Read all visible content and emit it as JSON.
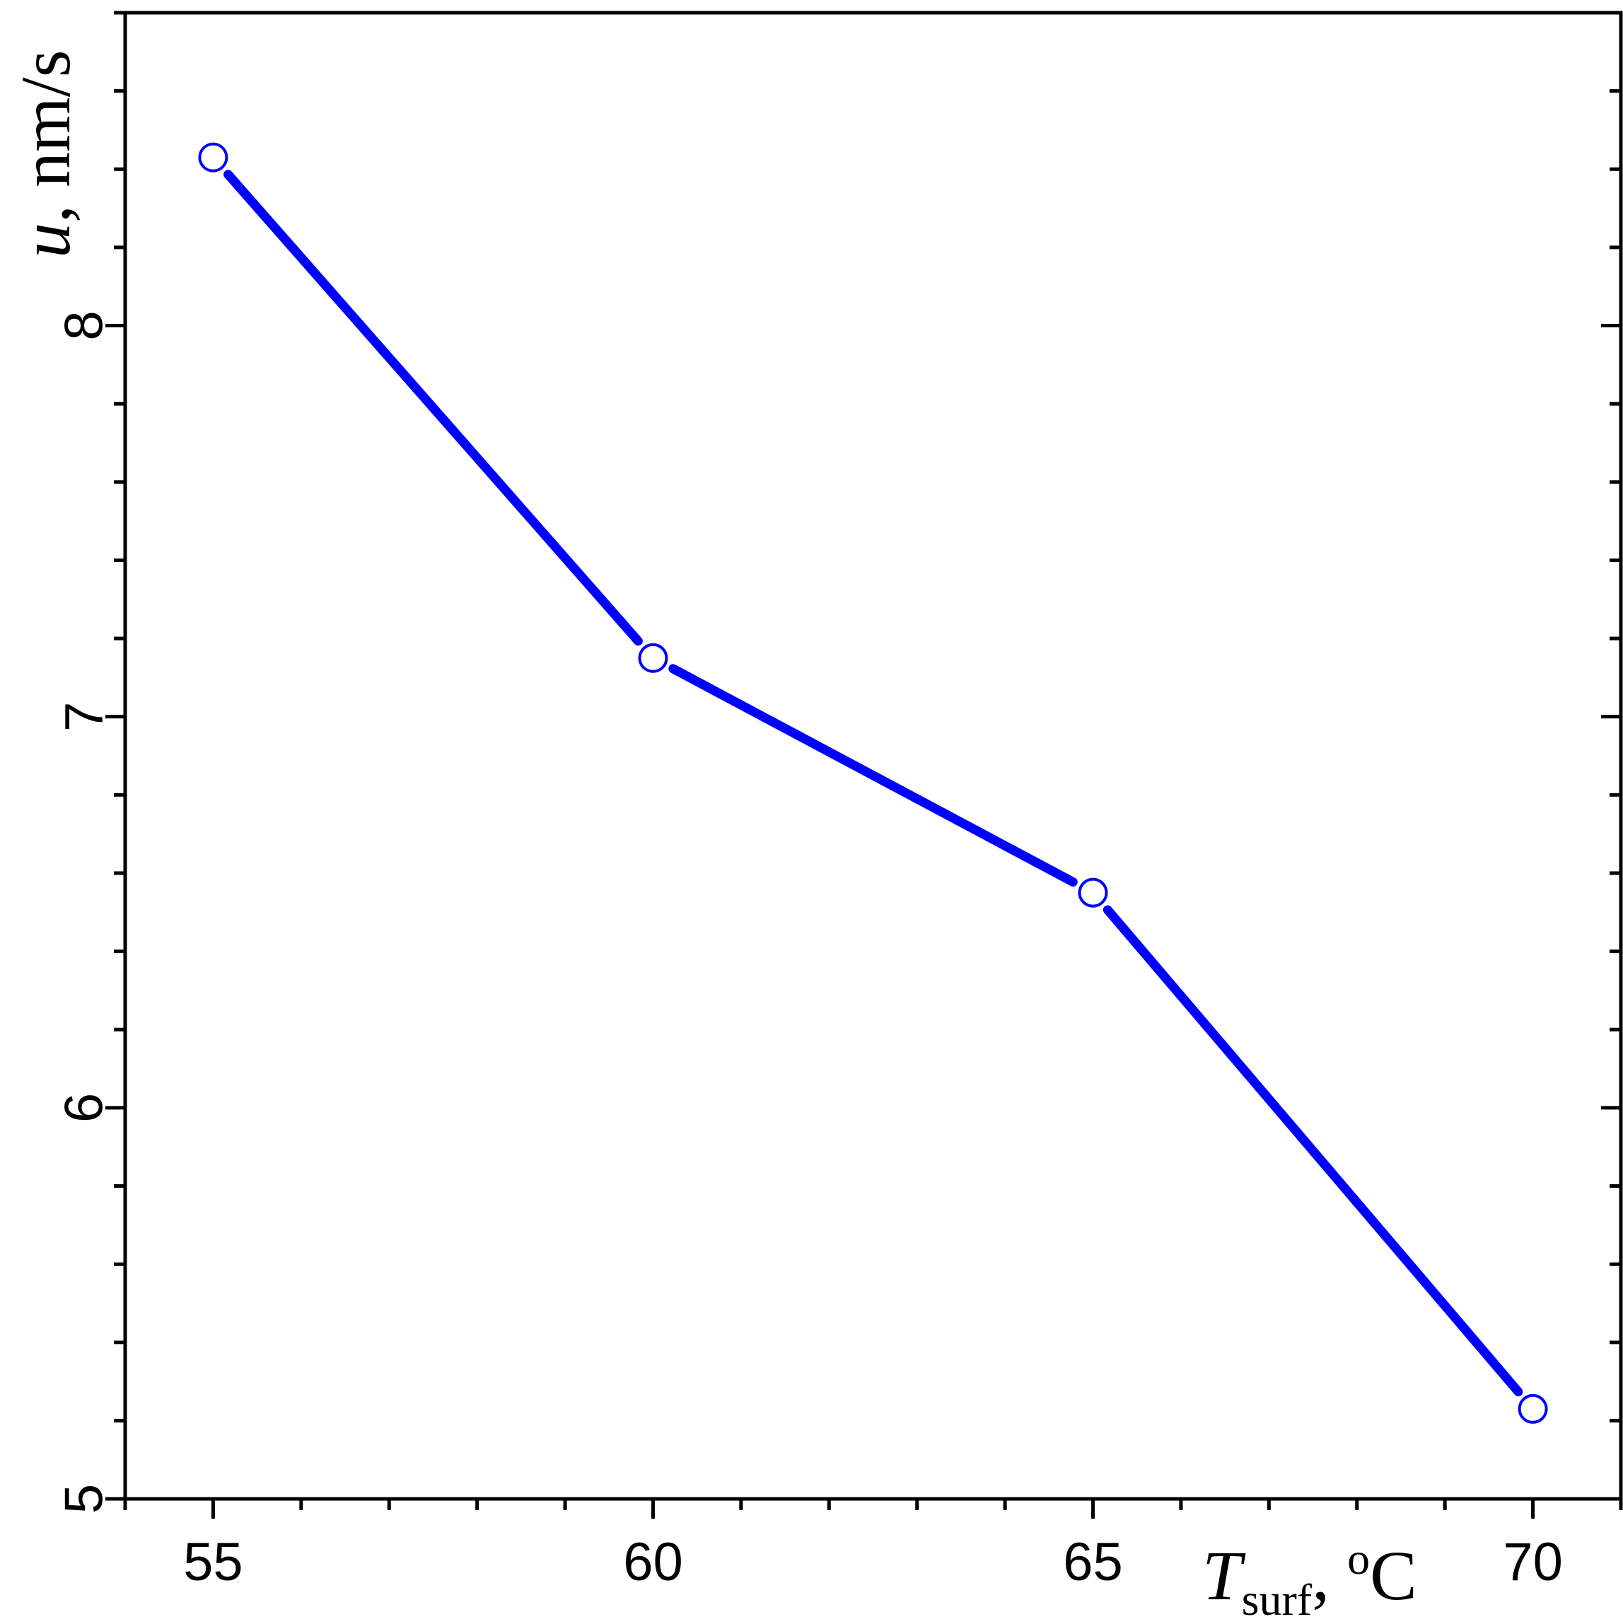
{
  "chart_data": {
    "type": "line",
    "x": [
      55,
      60,
      65,
      70
    ],
    "series": [
      {
        "values": [
          8.43,
          7.15,
          6.55,
          5.23
        ],
        "color": "#0000ff",
        "marker": "open-circle"
      }
    ],
    "xlabel": {
      "main": "T",
      "sub": "surf",
      "suffix": ", ",
      "sup": "o",
      "unit": "C"
    },
    "ylabel": {
      "var": "u",
      "rest": ", nm/s"
    },
    "xlim": [
      54,
      71
    ],
    "ylim": [
      5,
      8.8
    ],
    "x_ticks": [
      "55",
      "60",
      "65",
      "70"
    ],
    "y_ticks": [
      "5",
      "6",
      "7",
      "8"
    ],
    "grid": false,
    "legend": "none"
  }
}
